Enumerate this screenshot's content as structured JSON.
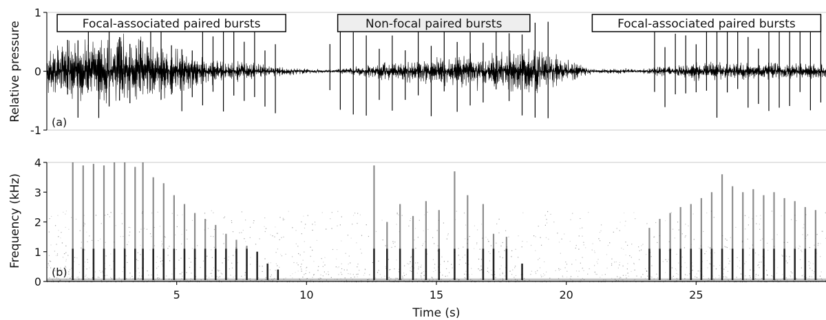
{
  "chart_data": [
    {
      "panel": "(a)",
      "type": "line",
      "ylabel": "Relative pressure",
      "ylim": [
        -1,
        1
      ],
      "yticks": [
        {
          "v": 1,
          "label": "1"
        },
        {
          "v": 0,
          "label": "0"
        },
        {
          "v": -1,
          "label": "-1"
        }
      ],
      "xlim": [
        0,
        30
      ],
      "segments": [
        {
          "label": "Focal-associated paired bursts",
          "start": 0.4,
          "end": 9.2,
          "fill": "#ffffff"
        },
        {
          "label": "Non-focal paired bursts",
          "start": 11.2,
          "end": 18.6,
          "fill": "#eeeeee"
        },
        {
          "label": "Focal-associated paired bursts",
          "start": 21.0,
          "end": 29.8,
          "fill": "#ffffff"
        }
      ],
      "bursts": [
        0.8,
        1.2,
        1.6,
        2.0,
        2.4,
        2.8,
        3.2,
        3.6,
        4.0,
        4.4,
        4.8,
        5.2,
        5.6,
        6.0,
        6.4,
        6.8,
        7.2,
        7.6,
        8.0,
        8.4,
        8.8,
        10.9,
        11.3,
        11.8,
        12.3,
        12.8,
        13.3,
        13.8,
        14.3,
        14.8,
        15.3,
        15.8,
        16.3,
        16.8,
        17.3,
        17.8,
        18.3,
        18.8,
        19.3,
        23.4,
        23.8,
        24.2,
        24.6,
        25.0,
        25.4,
        25.8,
        26.2,
        26.6,
        27.0,
        27.4,
        27.8,
        28.2,
        28.6,
        29.0,
        29.4,
        29.8
      ],
      "envelope": [
        {
          "t": 0,
          "a": 0.35
        },
        {
          "t": 3,
          "a": 0.5
        },
        {
          "t": 6,
          "a": 0.2
        },
        {
          "t": 9,
          "a": 0.06
        },
        {
          "t": 11,
          "a": 0.02
        },
        {
          "t": 13,
          "a": 0.12
        },
        {
          "t": 17,
          "a": 0.25
        },
        {
          "t": 19,
          "a": 0.3
        },
        {
          "t": 21,
          "a": 0.03
        },
        {
          "t": 23,
          "a": 0.04
        },
        {
          "t": 25,
          "a": 0.12
        },
        {
          "t": 30,
          "a": 0.1
        }
      ],
      "color": "#000000"
    },
    {
      "panel": "(b)",
      "type": "heatmap",
      "ylabel": "Frequency (kHz)",
      "ylim": [
        0,
        4
      ],
      "yticks": [
        {
          "v": 4,
          "label": "4"
        },
        {
          "v": 3,
          "label": "3"
        },
        {
          "v": 2,
          "label": "2"
        },
        {
          "v": 1,
          "label": "1"
        },
        {
          "v": 0,
          "label": "0"
        }
      ],
      "xlim": [
        0,
        30
      ],
      "xlabel": "Time (s)",
      "xticks": [
        {
          "v": 5,
          "label": "5"
        },
        {
          "v": 10,
          "label": "10"
        },
        {
          "v": 15,
          "label": "15"
        },
        {
          "v": 20,
          "label": "20"
        },
        {
          "v": 25,
          "label": "25"
        }
      ],
      "striations": [
        {
          "t": 1.0,
          "fmax": 4.0
        },
        {
          "t": 1.4,
          "fmax": 3.9
        },
        {
          "t": 1.8,
          "fmax": 3.95
        },
        {
          "t": 2.2,
          "fmax": 3.9
        },
        {
          "t": 2.6,
          "fmax": 4.0
        },
        {
          "t": 3.0,
          "fmax": 4.0
        },
        {
          "t": 3.4,
          "fmax": 3.85
        },
        {
          "t": 3.7,
          "fmax": 4.0
        },
        {
          "t": 4.1,
          "fmax": 3.5
        },
        {
          "t": 4.5,
          "fmax": 3.3
        },
        {
          "t": 4.9,
          "fmax": 2.9
        },
        {
          "t": 5.3,
          "fmax": 2.6
        },
        {
          "t": 5.7,
          "fmax": 2.3
        },
        {
          "t": 6.1,
          "fmax": 2.1
        },
        {
          "t": 6.5,
          "fmax": 1.9
        },
        {
          "t": 6.9,
          "fmax": 1.6
        },
        {
          "t": 7.3,
          "fmax": 1.4
        },
        {
          "t": 7.7,
          "fmax": 1.2
        },
        {
          "t": 8.1,
          "fmax": 1.0
        },
        {
          "t": 8.5,
          "fmax": 0.6
        },
        {
          "t": 8.9,
          "fmax": 0.4
        },
        {
          "t": 12.6,
          "fmax": 3.9
        },
        {
          "t": 13.1,
          "fmax": 2.0
        },
        {
          "t": 13.6,
          "fmax": 2.6
        },
        {
          "t": 14.1,
          "fmax": 2.2
        },
        {
          "t": 14.6,
          "fmax": 2.7
        },
        {
          "t": 15.1,
          "fmax": 2.4
        },
        {
          "t": 15.7,
          "fmax": 3.7
        },
        {
          "t": 16.2,
          "fmax": 2.9
        },
        {
          "t": 16.8,
          "fmax": 2.6
        },
        {
          "t": 17.2,
          "fmax": 1.6
        },
        {
          "t": 17.7,
          "fmax": 1.5
        },
        {
          "t": 18.3,
          "fmax": 0.6
        },
        {
          "t": 23.2,
          "fmax": 1.8
        },
        {
          "t": 23.6,
          "fmax": 2.1
        },
        {
          "t": 24.0,
          "fmax": 2.3
        },
        {
          "t": 24.4,
          "fmax": 2.5
        },
        {
          "t": 24.8,
          "fmax": 2.6
        },
        {
          "t": 25.2,
          "fmax": 2.8
        },
        {
          "t": 25.6,
          "fmax": 3.0
        },
        {
          "t": 26.0,
          "fmax": 3.6
        },
        {
          "t": 26.4,
          "fmax": 3.2
        },
        {
          "t": 26.8,
          "fmax": 3.0
        },
        {
          "t": 27.2,
          "fmax": 3.1
        },
        {
          "t": 27.6,
          "fmax": 2.9
        },
        {
          "t": 28.0,
          "fmax": 3.0
        },
        {
          "t": 28.4,
          "fmax": 2.8
        },
        {
          "t": 28.8,
          "fmax": 2.7
        },
        {
          "t": 29.2,
          "fmax": 2.5
        },
        {
          "t": 29.6,
          "fmax": 2.4
        }
      ],
      "color": "#000000"
    }
  ]
}
